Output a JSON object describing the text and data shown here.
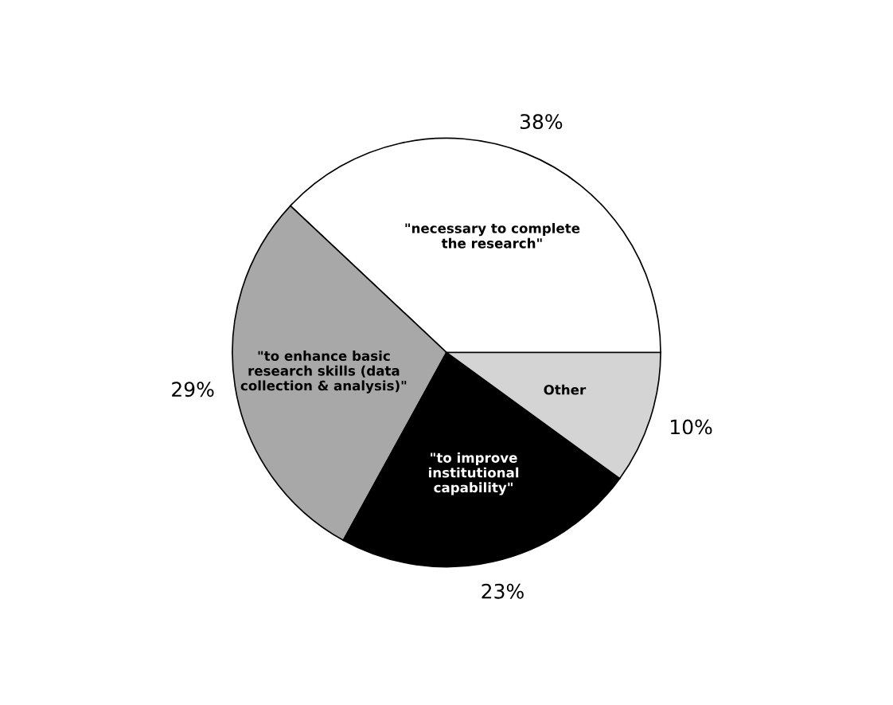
{
  "chart_data": {
    "type": "pie",
    "categories": [
      "\"necessary to complete\nthe research\"",
      "\"to enhance basic\nresearch skills (data\ncollection & analysis)\"",
      "\"to improve\ninstitutional\ncapability\"",
      "Other"
    ],
    "values": [
      38,
      29,
      23,
      10
    ],
    "colors": [
      "#ffffff",
      "#a8a8a8",
      "#000000",
      "#d4d4d4"
    ],
    "value_labels": [
      "38%",
      "29%",
      "23%",
      "10%"
    ]
  }
}
